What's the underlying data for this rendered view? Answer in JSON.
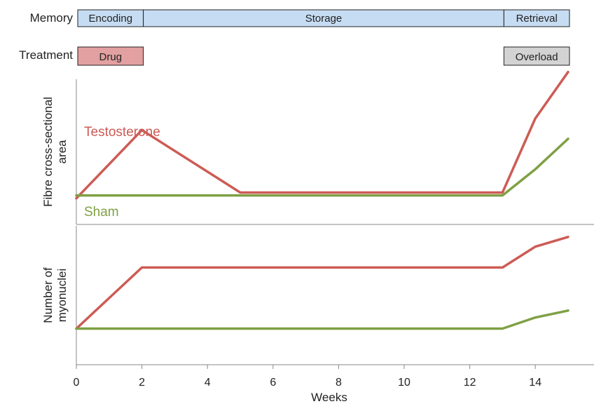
{
  "rows": {
    "memory_label": "Memory",
    "treatment_label": "Treatment"
  },
  "phases": [
    {
      "label": "Encoding",
      "start": 0,
      "end": 2,
      "fill": "#c6dcf2"
    },
    {
      "label": "Storage",
      "start": 2,
      "end": 13,
      "fill": "#c6dcf2"
    },
    {
      "label": "Retrieval",
      "start": 13,
      "end": 15,
      "fill": "#c6dcf2"
    }
  ],
  "treatments": [
    {
      "label": "Drug",
      "start": 0,
      "end": 2,
      "fill": "#e3a0a0"
    },
    {
      "label": "Overload",
      "start": 13,
      "end": 15,
      "fill": "#d3d3d3"
    }
  ],
  "colors": {
    "testosterone": "#cd5b55",
    "sham": "#7fa044",
    "axis": "#888888",
    "box_border": "#222222"
  },
  "chart_data": [
    {
      "type": "line",
      "ylabel": "Fibre cross-sectional area",
      "ylabel_lines": [
        "Fibre cross-sectional",
        "area"
      ],
      "xlim": [
        0,
        15.5
      ],
      "ylim": [
        0,
        10
      ],
      "series": [
        {
          "name": "Testosterone",
          "x": [
            0,
            2,
            5,
            13,
            14,
            15
          ],
          "y": [
            1.8,
            6.5,
            2.2,
            2.2,
            7.3,
            10.5
          ]
        },
        {
          "name": "Sham",
          "x": [
            0,
            13,
            14,
            15
          ],
          "y": [
            2.0,
            2.0,
            3.8,
            5.9
          ]
        }
      ]
    },
    {
      "type": "line",
      "ylabel": "Number of myonuclei",
      "ylabel_lines": [
        "Number of",
        "myonuclei"
      ],
      "xlabel": "Weeks",
      "xlim": [
        0,
        15.5
      ],
      "ylim": [
        0,
        10
      ],
      "xticks": [
        0,
        2,
        4,
        6,
        8,
        10,
        12,
        14
      ],
      "series": [
        {
          "name": "Testosterone",
          "x": [
            0,
            2,
            13,
            14,
            15
          ],
          "y": [
            2.6,
            7.0,
            7.0,
            8.5,
            9.2
          ]
        },
        {
          "name": "Sham",
          "x": [
            0,
            13,
            14,
            15
          ],
          "y": [
            2.6,
            2.6,
            3.4,
            3.9
          ]
        }
      ]
    }
  ]
}
